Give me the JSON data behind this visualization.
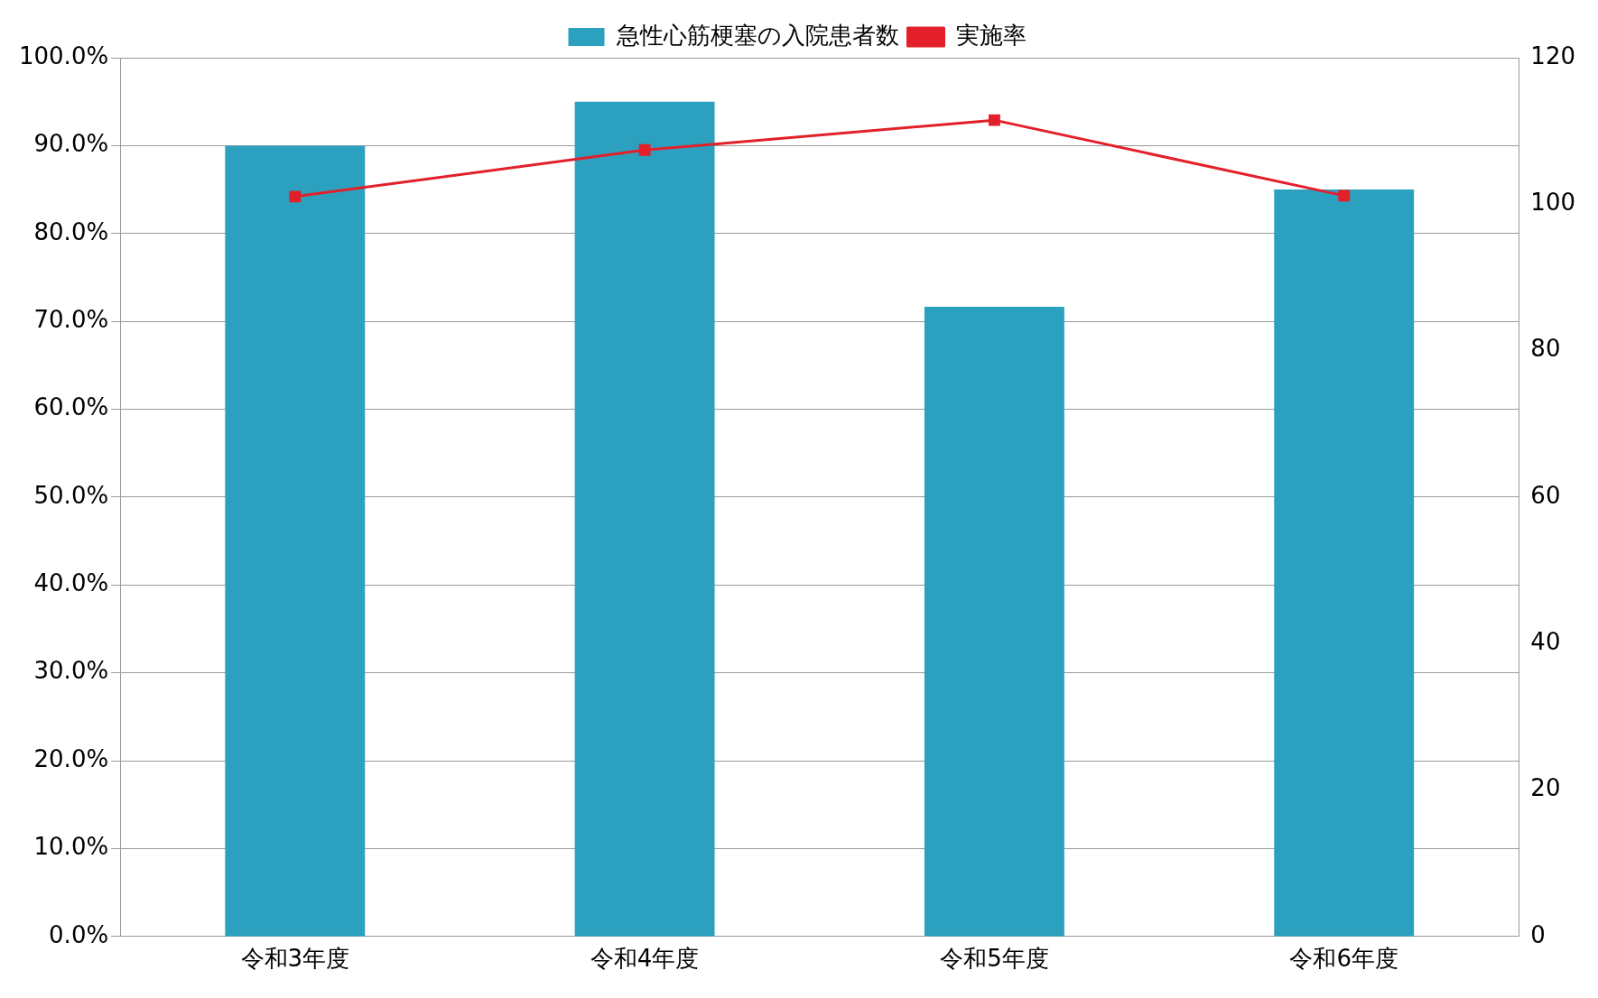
{
  "chart_data": {
    "type": "bar",
    "categories": [
      "令和3年度",
      "令和4年度",
      "令和5年度",
      "令和6年度"
    ],
    "series": [
      {
        "name": "急性心筋梗塞の入院患者数",
        "color": "#2ca1bf",
        "axis": "y2",
        "values": [
          108,
          114,
          86,
          102
        ]
      },
      {
        "name": "実施率",
        "type": "line",
        "color": "#e3202a",
        "values": [
          84.2,
          89.5,
          92.9,
          84.3
        ],
        "marker": "square"
      }
    ],
    "ylim": [
      0,
      100
    ],
    "yticks": [
      {
        "value": 0,
        "label": "0.0%"
      },
      {
        "value": 10,
        "label": "10.0%"
      },
      {
        "value": 20,
        "label": "20.0%"
      },
      {
        "value": 30,
        "label": "30.0%"
      },
      {
        "value": 40,
        "label": "40.0%"
      },
      {
        "value": 50,
        "label": "50.0%"
      },
      {
        "value": 60,
        "label": "60.0%"
      },
      {
        "value": 70,
        "label": "70.0%"
      },
      {
        "value": 80,
        "label": "80.0%"
      },
      {
        "value": 90,
        "label": "90.0%"
      },
      {
        "value": 100,
        "label": "100.0%"
      }
    ],
    "y2lim": [
      0,
      120
    ],
    "y2ticks": [
      0,
      20,
      40,
      60,
      80,
      100,
      120
    ],
    "grid": "y",
    "legend": "top"
  }
}
